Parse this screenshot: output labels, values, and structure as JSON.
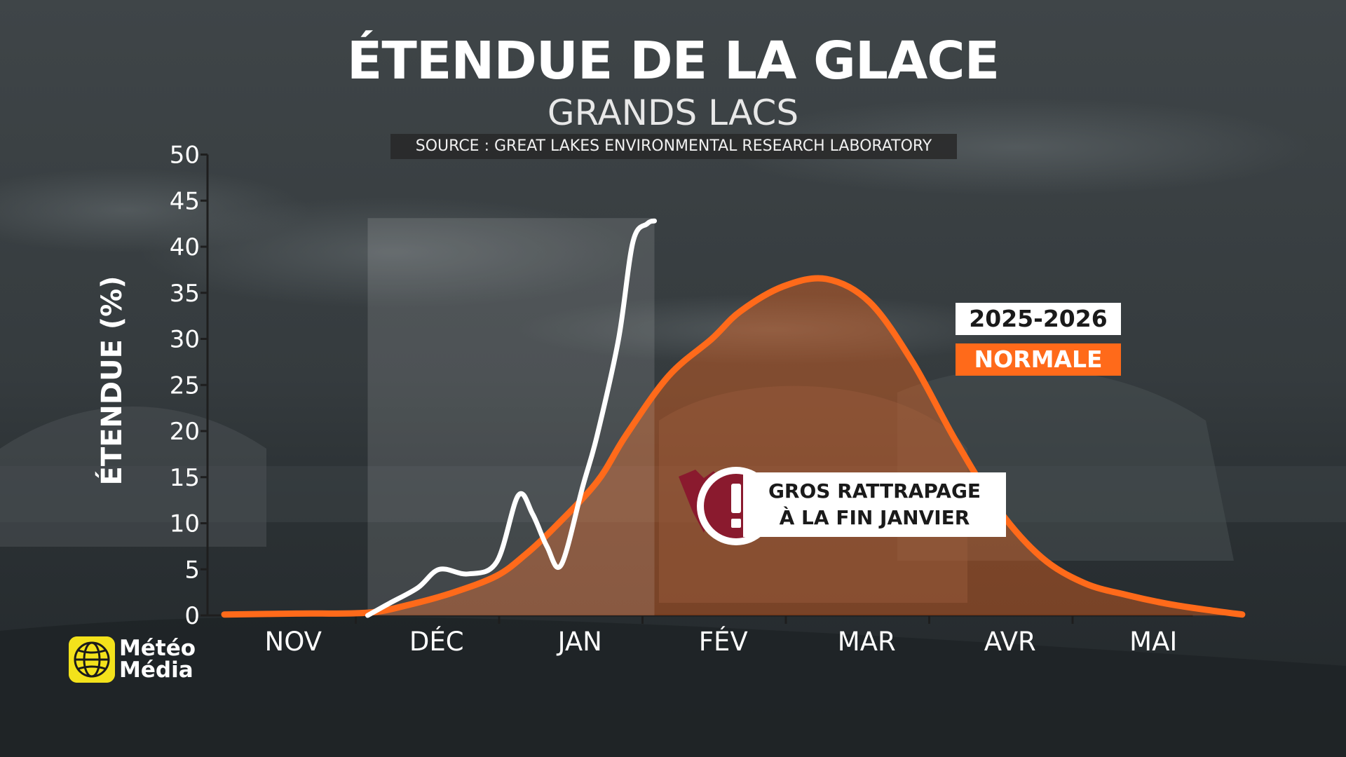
{
  "title": "ÉTENDUE DE LA GLACE",
  "subtitle": "GRANDS LACS",
  "source": "SOURCE : GREAT LAKES ENVIRONMENTAL RESEARCH LABORATORY",
  "callout": {
    "line1": "GROS RATTRAPAGE",
    "line2": "À LA FIN JANVIER",
    "icon": "exclamation-icon"
  },
  "logo": {
    "line1": "Météo",
    "line2": "Média",
    "icon": "meteomedia-globe-icon"
  },
  "colors": {
    "normal": "#ff6a1a",
    "current": "#ffffff",
    "callout_accent": "#8a1a2e",
    "logo_yellow": "#f3e21b"
  },
  "chart_data": {
    "type": "line",
    "ylabel": "ÉTENDUE (%)",
    "xlabel": "",
    "ylim": [
      0,
      50
    ],
    "yticks": [
      0,
      5,
      10,
      15,
      20,
      25,
      30,
      35,
      40,
      45,
      50
    ],
    "month_labels": [
      "NOV",
      "DÉC",
      "JAN",
      "FÉV",
      "MAR",
      "AVR",
      "MAI"
    ],
    "x_unit": "months since Nov 1",
    "grid": false,
    "legend_position": "right",
    "series": [
      {
        "name": "NORMALE",
        "color": "#ff6a1a",
        "filled": true,
        "x": [
          0.0,
          0.5,
          1.0,
          1.3,
          1.6,
          1.9,
          2.1,
          2.3,
          2.6,
          2.8,
          3.1,
          3.4,
          3.6,
          3.9,
          4.2,
          4.5,
          4.8,
          5.1,
          5.4,
          5.7,
          6.0,
          6.3,
          6.6,
          6.9,
          7.1
        ],
        "values": [
          0.1,
          0.2,
          0.3,
          1.2,
          2.5,
          4.3,
          6.6,
          9.5,
          14.5,
          19.5,
          26.0,
          30.0,
          33.0,
          35.7,
          36.5,
          34.0,
          27.5,
          19.0,
          11.5,
          6.3,
          3.5,
          2.2,
          1.2,
          0.5,
          0.1
        ]
      },
      {
        "name": "2025-2026",
        "color": "#ffffff",
        "filled": false,
        "x": [
          1.0,
          1.15,
          1.35,
          1.5,
          1.7,
          1.9,
          2.05,
          2.15,
          2.25,
          2.35,
          2.5,
          2.6,
          2.75,
          2.85,
          2.95,
          3.0
        ],
        "values": [
          0.0,
          1.3,
          3.0,
          5.0,
          4.5,
          5.8,
          13.0,
          11.0,
          7.5,
          5.5,
          14.0,
          19.5,
          30.0,
          40.5,
          42.5,
          42.8
        ]
      }
    ]
  }
}
